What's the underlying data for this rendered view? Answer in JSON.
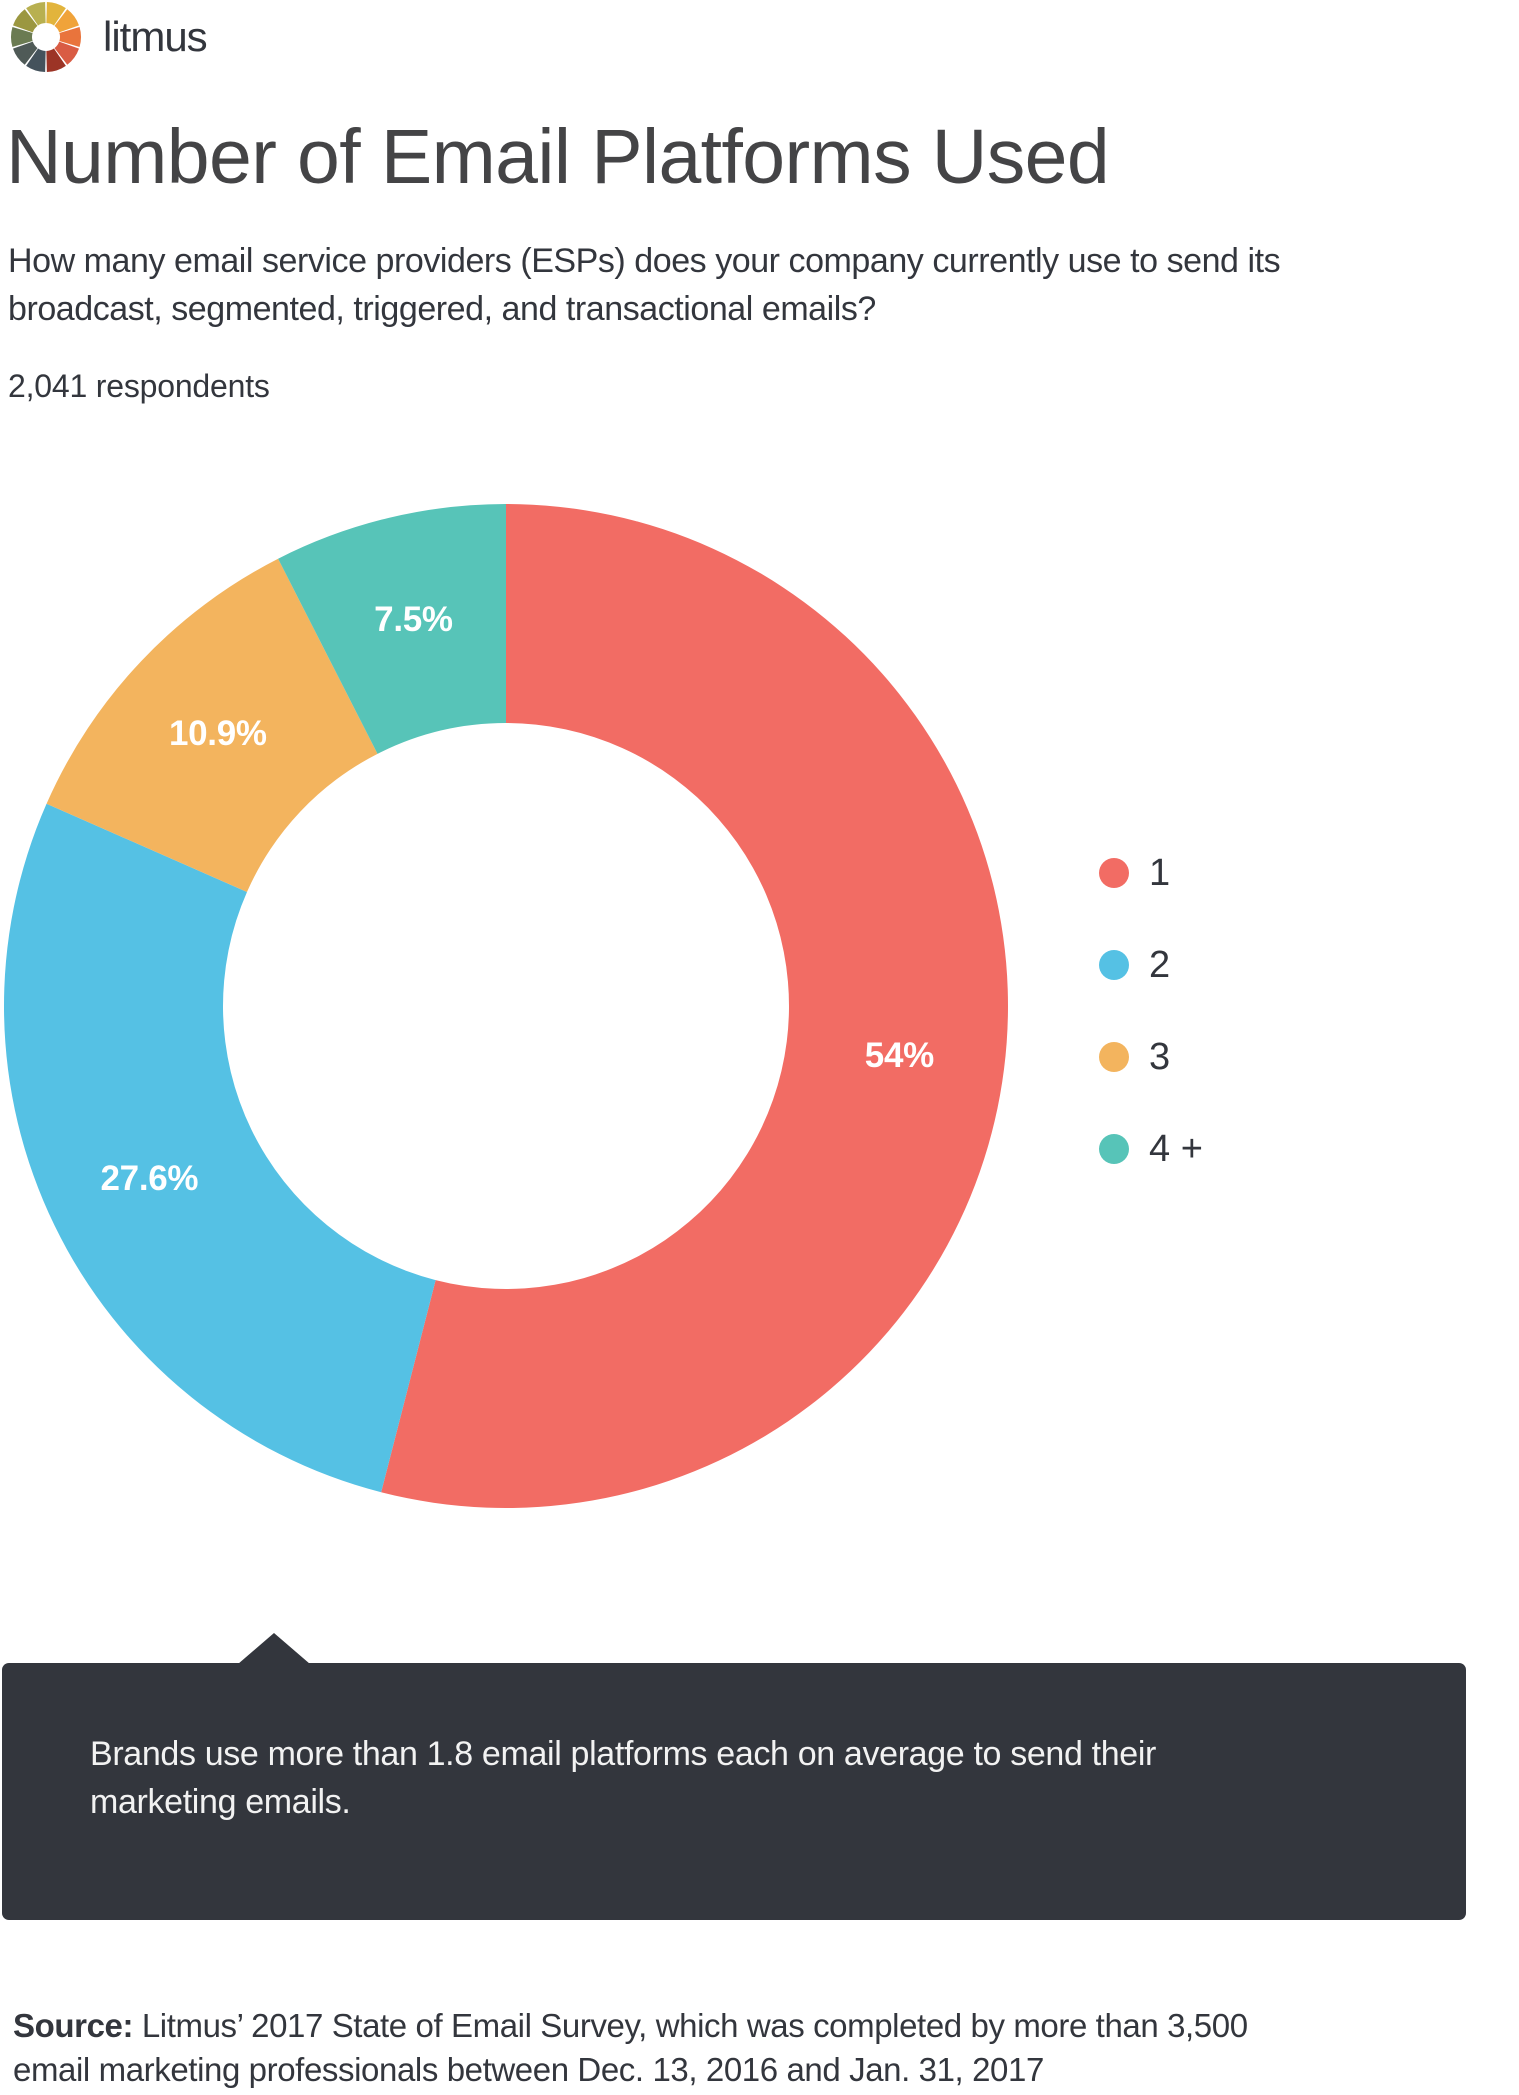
{
  "brand": {
    "name": "litmus",
    "logo_icon": "litmus-color-wheel-icon",
    "logo_segment_colors": [
      "#e2b43c",
      "#f0a33a",
      "#e9743c",
      "#d95c44",
      "#9c3426",
      "#44525c",
      "#4f5a57",
      "#6b7b52",
      "#9b9740",
      "#b8b050"
    ]
  },
  "header": {
    "title": "Number of Email Platforms Used",
    "subtitle_lines": [
      "How many email service providers (ESPs) does your company currently use to send its",
      "broadcast, segmented, triggered, and transactional emails?"
    ],
    "respondents": "2,041 respondents"
  },
  "chart_data": {
    "type": "pie",
    "variant": "donut",
    "title": "Number of Email Platforms Used",
    "categories": [
      "1",
      "2",
      "3",
      "4 +"
    ],
    "values": [
      54,
      27.6,
      10.9,
      7.5
    ],
    "value_labels": [
      "54%",
      "27.6%",
      "10.9%",
      "7.5%"
    ],
    "colors": [
      "#f26c64",
      "#55c1e4",
      "#f3b45e",
      "#57c4b8"
    ],
    "unit": "%",
    "start_angle": "12 o'clock, clockwise",
    "legend_position": "right",
    "respondents": 2041
  },
  "legend": {
    "items": [
      {
        "label": "1",
        "color": "#f26c64"
      },
      {
        "label": "2",
        "color": "#55c1e4"
      },
      {
        "label": "3",
        "color": "#f3b45e"
      },
      {
        "label": "4 +",
        "color": "#57c4b8"
      }
    ]
  },
  "callout": {
    "lines": [
      "Brands use more than 1.8 email platforms each on average to send their",
      "marketing emails."
    ],
    "background": "#33363d"
  },
  "footer": {
    "source_label": "Source:",
    "source_line1_rest": " Litmus’ 2017 State of Email Survey, which was completed by more than 3,500",
    "source_line2": "email marketing professionals between Dec. 13, 2016 and Jan. 31, 2017"
  }
}
